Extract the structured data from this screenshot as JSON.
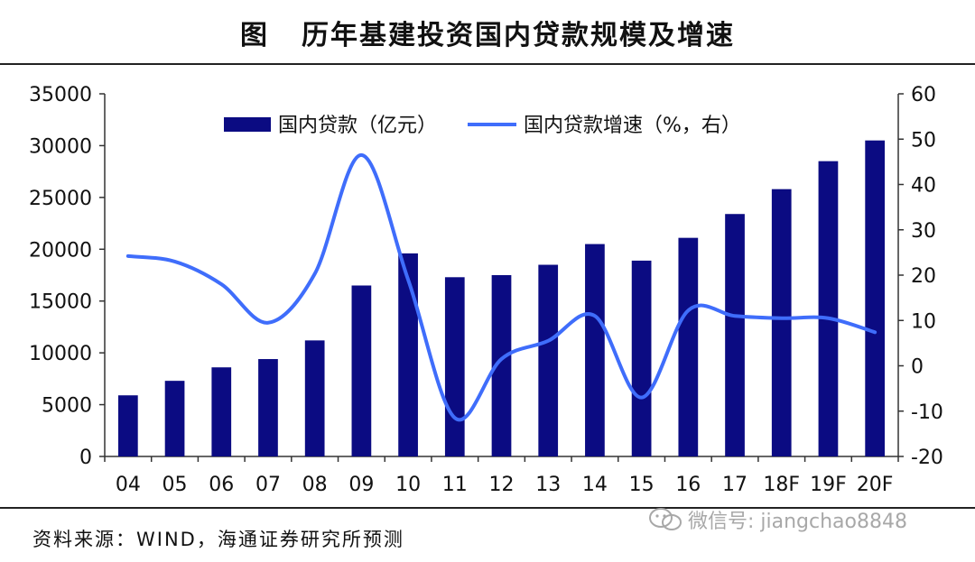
{
  "header": {
    "prefix": "图",
    "title": "历年基建投资国内贷款规模及增速"
  },
  "footer": {
    "source": "资料来源：WIND，海通证券研究所预测",
    "watermark": "微信号: jiangchao8848"
  },
  "colors": {
    "bar": "#0b0b82",
    "line": "#3f6dfb",
    "axis": "#333333"
  },
  "chart_data": {
    "type": "bar",
    "title": "历年基建投资国内贷款规模及增速",
    "categories": [
      "04",
      "05",
      "06",
      "07",
      "08",
      "09",
      "10",
      "11",
      "12",
      "13",
      "14",
      "15",
      "16",
      "17",
      "18F",
      "19F",
      "20F"
    ],
    "series": [
      {
        "name": "国内贷款（亿元）",
        "type": "bar",
        "axis": "left",
        "values": [
          5900,
          7300,
          8600,
          9400,
          11200,
          16500,
          19600,
          17300,
          17500,
          18500,
          20500,
          18900,
          21100,
          23400,
          25800,
          28500,
          30500
        ]
      },
      {
        "name": "国内贷款增速（%，右）",
        "type": "line",
        "axis": "right",
        "values": [
          24.2,
          23.0,
          18.0,
          9.5,
          20.3,
          46.5,
          19.0,
          -11.5,
          1.5,
          5.5,
          11.0,
          -7.0,
          12.2,
          11.0,
          10.5,
          10.5,
          7.4
        ]
      }
    ],
    "y_left": {
      "min": 0,
      "max": 35000,
      "ticks": [
        0,
        5000,
        10000,
        15000,
        20000,
        25000,
        30000,
        35000
      ]
    },
    "y_right": {
      "min": -20,
      "max": 60,
      "ticks": [
        -20,
        -10,
        0,
        10,
        20,
        30,
        40,
        50,
        60
      ]
    },
    "grid": false,
    "legend_position": "top-left"
  }
}
